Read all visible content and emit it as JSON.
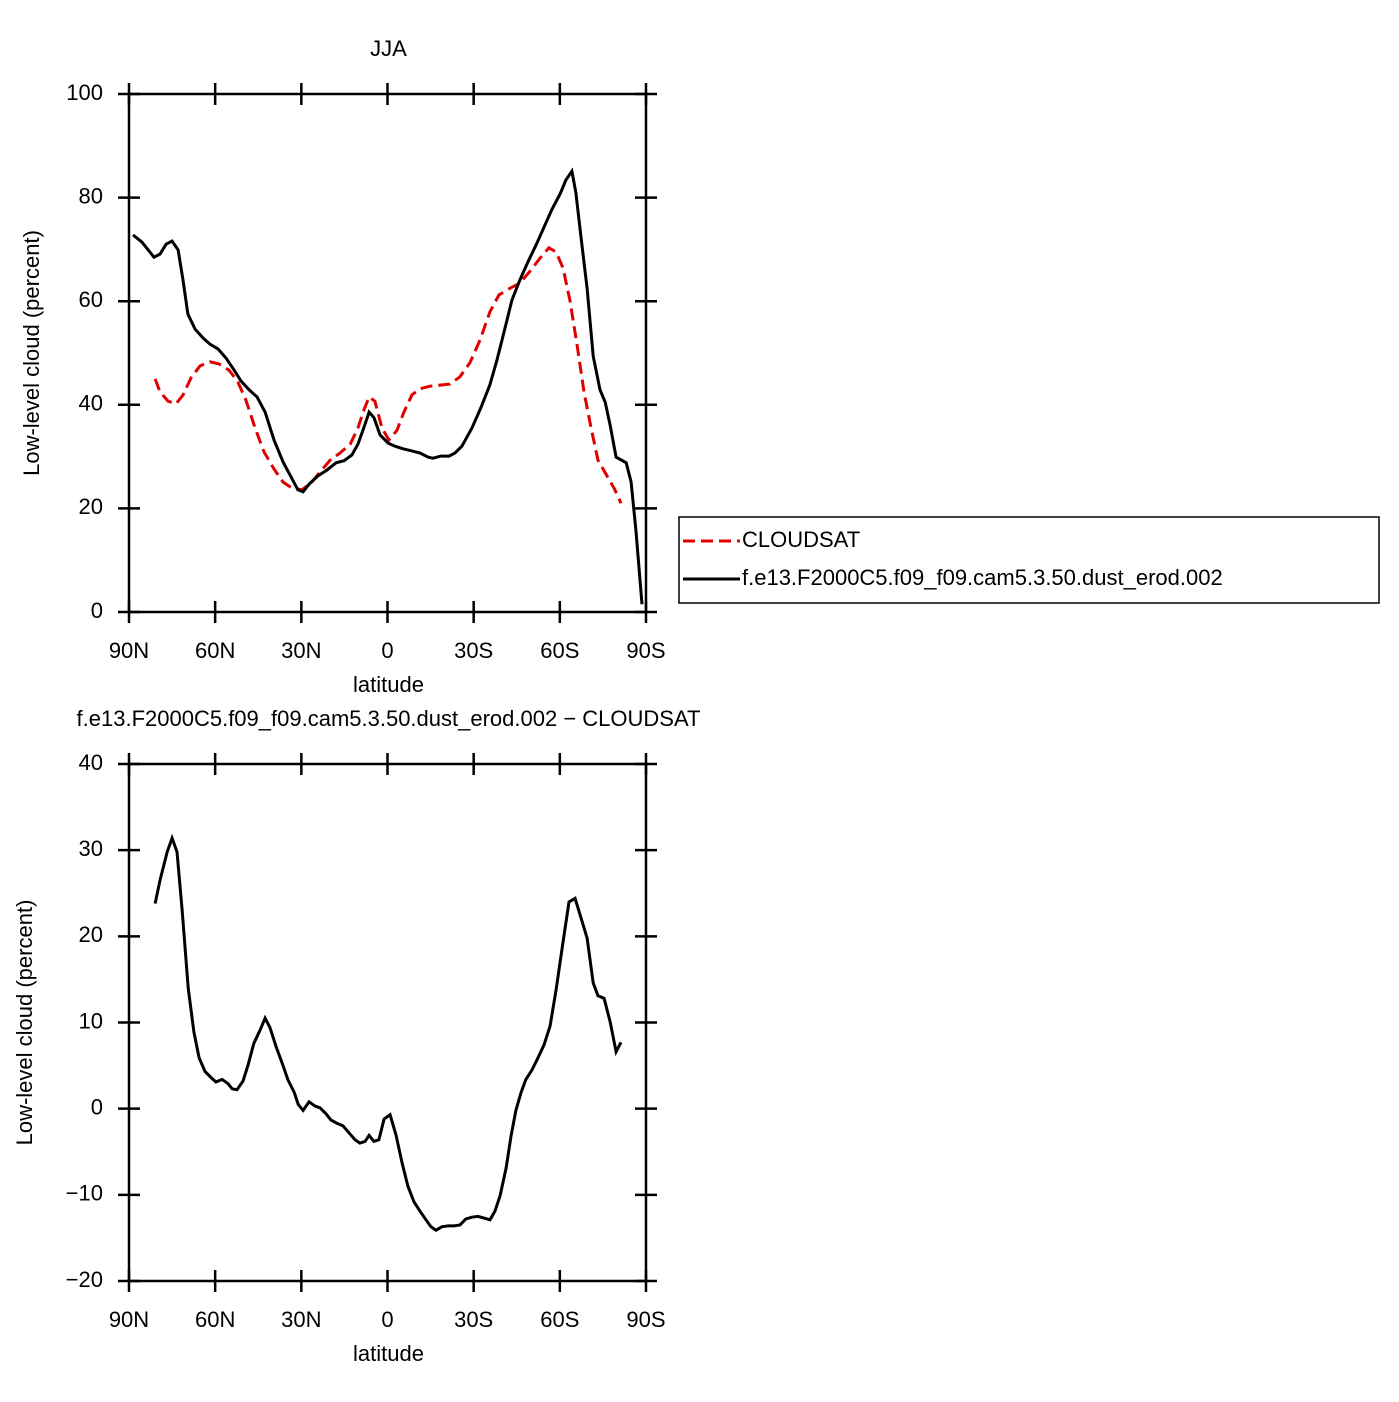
{
  "chart_data": [
    {
      "type": "line",
      "title": "JJA",
      "xlabel": "latitude",
      "ylabel": "Low-level cloud (percent)",
      "xlim": [
        90,
        -90
      ],
      "xticks": [
        {
          "value": 90,
          "label": "90N"
        },
        {
          "value": 60,
          "label": "60N"
        },
        {
          "value": 30,
          "label": "30N"
        },
        0,
        {
          "value": -30,
          "label": "30S"
        },
        {
          "value": -60,
          "label": "60S"
        },
        {
          "value": -90,
          "label": "90S"
        }
      ],
      "ylim": [
        0,
        100
      ],
      "yticks": [
        0,
        20,
        40,
        60,
        80,
        100
      ],
      "legend": "right",
      "series": [
        {
          "name": "CLOUDSAT",
          "color": "#e00000",
          "style": "dashed",
          "x": [
            80.9,
            79.2,
            76.4,
            73.6,
            71.2,
            68.4,
            65.3,
            61.8,
            58.7,
            55.2,
            52.1,
            49.3,
            46.1,
            43.0,
            39.5,
            36.4,
            33.2,
            29.8,
            26.6,
            23.5,
            20.0,
            16.5,
            13.0,
            10.3,
            8.2,
            6.4,
            4.4,
            1.9,
            -0.5,
            -3.3,
            -5.7,
            -8.5,
            -11.3,
            -14.8,
            -18.3,
            -21.7,
            -25.2,
            -28.7,
            -32.2,
            -35.6,
            -38.8,
            -42.6,
            -46.1,
            -49.6,
            -53.1,
            -56.2,
            -58.7,
            -61.1,
            -63.5,
            -66.0,
            -68.4,
            -70.9,
            -73.3,
            -76.4,
            -78.9,
            -81.3
          ],
          "values": [
            45.0,
            42.5,
            40.7,
            40.2,
            41.9,
            45.2,
            47.5,
            48.3,
            47.9,
            46.7,
            44.4,
            40.9,
            35.5,
            30.9,
            27.6,
            25.1,
            23.9,
            23.6,
            24.9,
            27.0,
            29.3,
            30.7,
            32.4,
            35.5,
            39.0,
            41.5,
            40.7,
            35.5,
            33.2,
            35.1,
            38.6,
            41.9,
            43.1,
            43.6,
            43.8,
            44.0,
            45.4,
            48.1,
            52.5,
            57.9,
            61.2,
            62.5,
            63.5,
            65.8,
            68.3,
            70.3,
            69.5,
            66.4,
            60.2,
            51.5,
            42.5,
            35.5,
            29.3,
            26.3,
            23.9,
            21.0
          ]
        },
        {
          "name": "f.e13.F2000C5.f09_f09.cam5.3.50.dust_erod.002",
          "color": "#000000",
          "style": "solid",
          "x": [
            88.6,
            85.5,
            81.3,
            79.2,
            77.1,
            75.0,
            72.9,
            71.2,
            69.5,
            67.0,
            64.2,
            61.8,
            59.0,
            56.2,
            53.4,
            51.0,
            48.2,
            45.4,
            42.6,
            39.5,
            36.4,
            33.2,
            31.2,
            29.4,
            27.3,
            24.2,
            21.1,
            17.9,
            15.1,
            12.4,
            10.3,
            8.3,
            6.4,
            4.7,
            2.6,
            -0.2,
            -2.6,
            -5.4,
            -8.5,
            -11.3,
            -14.1,
            -15.8,
            -18.6,
            -21.4,
            -23.5,
            -25.9,
            -29.4,
            -32.5,
            -35.6,
            -38.1,
            -40.6,
            -43.3,
            -46.1,
            -48.9,
            -52.0,
            -54.8,
            -57.3,
            -60.1,
            -62.1,
            -64.2,
            -65.6,
            -67.4,
            -69.5,
            -71.6,
            -74.0,
            -75.8,
            -77.5,
            -79.6,
            -83.1,
            -84.8,
            -86.5,
            -88.6
          ],
          "values": [
            72.8,
            71.4,
            68.5,
            69.1,
            71.0,
            71.6,
            69.9,
            64.1,
            57.5,
            54.6,
            52.9,
            51.7,
            50.8,
            49.0,
            46.7,
            44.6,
            42.9,
            41.5,
            38.6,
            33.2,
            29.0,
            25.7,
            23.6,
            23.2,
            24.7,
            26.3,
            27.4,
            28.8,
            29.2,
            30.3,
            32.4,
            35.5,
            38.6,
            37.5,
            34.2,
            32.6,
            32.0,
            31.5,
            31.1,
            30.7,
            29.9,
            29.7,
            30.1,
            30.1,
            30.7,
            32.0,
            35.5,
            39.4,
            43.8,
            48.6,
            54.1,
            60.2,
            64.1,
            67.6,
            71.2,
            74.7,
            77.8,
            80.7,
            83.4,
            85.1,
            80.9,
            72.2,
            62.5,
            49.4,
            42.9,
            40.5,
            36.1,
            29.9,
            28.8,
            25.1,
            15.8,
            1.5
          ]
        }
      ]
    },
    {
      "type": "line",
      "title": "f.e13.F2000C5.f09_f09.cam5.3.50.dust_erod.002 − CLOUDSAT",
      "xlabel": "latitude",
      "ylabel": "Low-level cloud (percent)",
      "xlim": [
        90,
        -90
      ],
      "xticks": [
        {
          "value": 90,
          "label": "90N"
        },
        {
          "value": 60,
          "label": "60N"
        },
        {
          "value": 30,
          "label": "30N"
        },
        0,
        {
          "value": -30,
          "label": "30S"
        },
        {
          "value": -60,
          "label": "60S"
        },
        {
          "value": -90,
          "label": "90S"
        }
      ],
      "ylim": [
        -20,
        40
      ],
      "yticks": [
        {
          "value": -20,
          "label": "−20"
        },
        {
          "value": -10,
          "label": "−10"
        },
        0,
        10,
        20,
        30,
        40
      ],
      "series": [
        {
          "color": "#000000",
          "style": "solid",
          "x": [
            80.9,
            79.2,
            76.7,
            75.0,
            73.3,
            71.5,
            69.4,
            67.4,
            65.6,
            63.5,
            61.4,
            59.7,
            57.6,
            55.5,
            54.1,
            52.4,
            50.3,
            48.6,
            46.5,
            44.4,
            42.6,
            40.9,
            38.8,
            36.7,
            34.6,
            32.5,
            31.1,
            29.4,
            27.3,
            25.2,
            23.5,
            21.4,
            19.7,
            17.6,
            15.5,
            13.4,
            11.3,
            9.6,
            7.8,
            6.4,
            4.7,
            3.0,
            1.2,
            -0.9,
            -3.0,
            -5.1,
            -7.1,
            -9.2,
            -11.3,
            -13.4,
            -15.1,
            -16.9,
            -19.0,
            -21.1,
            -23.2,
            -25.2,
            -27.3,
            -29.4,
            -31.5,
            -33.6,
            -35.7,
            -37.4,
            -39.2,
            -41.3,
            -43.0,
            -44.7,
            -46.5,
            -48.2,
            -50.3,
            -52.4,
            -54.5,
            -56.6,
            -58.7,
            -60.8,
            -63.2,
            -65.3,
            -67.4,
            -69.5,
            -71.6,
            -73.3,
            -75.4,
            -77.5,
            -79.6,
            -81.3
          ],
          "values": [
            23.8,
            26.5,
            29.8,
            31.4,
            29.8,
            23.1,
            14.0,
            8.9,
            5.9,
            4.3,
            3.6,
            3.1,
            3.4,
            2.9,
            2.3,
            2.2,
            3.2,
            5.0,
            7.6,
            9.1,
            10.5,
            9.4,
            7.2,
            5.3,
            3.3,
            1.9,
            0.5,
            -0.2,
            0.8,
            0.3,
            0.1,
            -0.6,
            -1.3,
            -1.7,
            -2.0,
            -2.8,
            -3.6,
            -4.0,
            -3.8,
            -3.1,
            -3.8,
            -3.6,
            -1.2,
            -0.7,
            -3.1,
            -6.3,
            -9.0,
            -10.8,
            -11.9,
            -12.9,
            -13.7,
            -14.1,
            -13.7,
            -13.6,
            -13.6,
            -13.5,
            -12.8,
            -12.6,
            -12.5,
            -12.7,
            -12.9,
            -11.9,
            -10.1,
            -6.9,
            -3.2,
            -0.2,
            1.9,
            3.4,
            4.5,
            5.9,
            7.4,
            9.6,
            13.8,
            18.6,
            24.0,
            24.4,
            22.1,
            19.8,
            14.6,
            13.1,
            12.8,
            10.1,
            6.6,
            7.7
          ]
        }
      ]
    }
  ]
}
